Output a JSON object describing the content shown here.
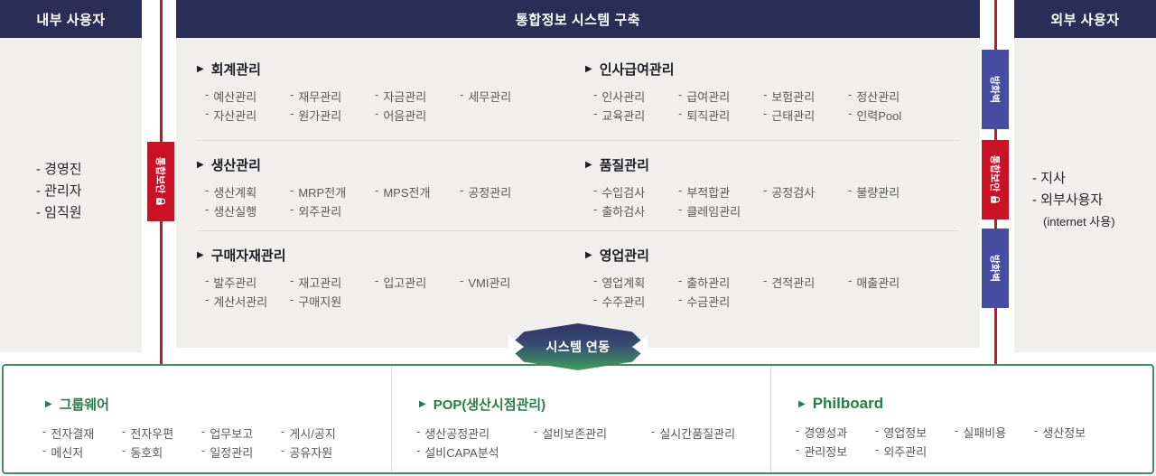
{
  "glyphs": {
    "marker": "▶",
    "item_prefix": "-"
  },
  "colors": {
    "navy_header": "#2a2e57",
    "badge_blue": "#444da0",
    "security_red": "#ca1126",
    "green_border": "#3e8f5b",
    "green_title": "#2c7a4b",
    "panel_bg": "#f0efed",
    "item_text": "#595959",
    "connector_gradient_top": "#2f3763",
    "connector_gradient_bottom": "#3f9f5c"
  },
  "headers": {
    "internal_users": "내부 사용자",
    "center_title": "통합정보 시스템 구축",
    "external_users": "외부 사용자"
  },
  "left_panel": {
    "items": [
      "- 경영진",
      "- 관리자",
      "- 임직원"
    ]
  },
  "right_panel": {
    "items": [
      "- 지사",
      "- 외부사용자",
      "(internet 사용)"
    ]
  },
  "security": {
    "left_badge": {
      "label": "통합보안",
      "icon": "lock-icon"
    },
    "right_badges": [
      {
        "label": "방화벽",
        "icon": ""
      },
      {
        "label": "통합보안",
        "icon": "lock-icon"
      },
      {
        "label": "방화벽",
        "icon": ""
      }
    ]
  },
  "modules": [
    {
      "title": "회계관리",
      "rows": [
        [
          "예산관리",
          "재무관리",
          "자금관리",
          "세무관리"
        ],
        [
          "자산관리",
          "원가관리",
          "어음관리"
        ]
      ]
    },
    {
      "title": "인사급여관리",
      "rows": [
        [
          "인사관리",
          "급여관리",
          "보험관리",
          "정산관리"
        ],
        [
          "교육관리",
          "퇴직관리",
          "근태관리",
          "인력Pool"
        ]
      ]
    },
    {
      "title": "생산관리",
      "rows": [
        [
          "생산계획",
          "MRP전개",
          "MPS전개",
          "공정관리"
        ],
        [
          "생산실행",
          "외주관리"
        ]
      ]
    },
    {
      "title": "품질관리",
      "rows": [
        [
          "수입검사",
          "부적합관",
          "공정검사",
          "불량관리"
        ],
        [
          "출하검사",
          "클레임관리"
        ]
      ]
    },
    {
      "title": "구매자재관리",
      "rows": [
        [
          "발주관리",
          "재고관리",
          "입고관리",
          "VMI관리"
        ],
        [
          "계산서관리",
          "구매지원"
        ]
      ]
    },
    {
      "title": "영업관리",
      "rows": [
        [
          "영업계획",
          "출하관리",
          "견적관리",
          "매출관리"
        ],
        [
          "수주관리",
          "수금관리"
        ]
      ]
    }
  ],
  "connector": {
    "label": "시스템 연동"
  },
  "bottom_sections": [
    {
      "title": "그룹웨어",
      "rows": [
        [
          "전자결재",
          "전자우편",
          "업무보고",
          "게시/공지"
        ],
        [
          "메신저",
          "동호회",
          "일정관리",
          "공유자원"
        ]
      ]
    },
    {
      "title": "POP(생산시점관리)",
      "rows": [
        [
          "생산공정관리",
          "설비보존관리",
          "실시간품질관리"
        ],
        [
          "설비CAPA분석"
        ]
      ]
    },
    {
      "title": "Philboard",
      "rows": [
        [
          "경영성과",
          "영업정보",
          "실패비용",
          "생산정보"
        ],
        [
          "관리정보",
          "외주관리"
        ]
      ]
    }
  ]
}
